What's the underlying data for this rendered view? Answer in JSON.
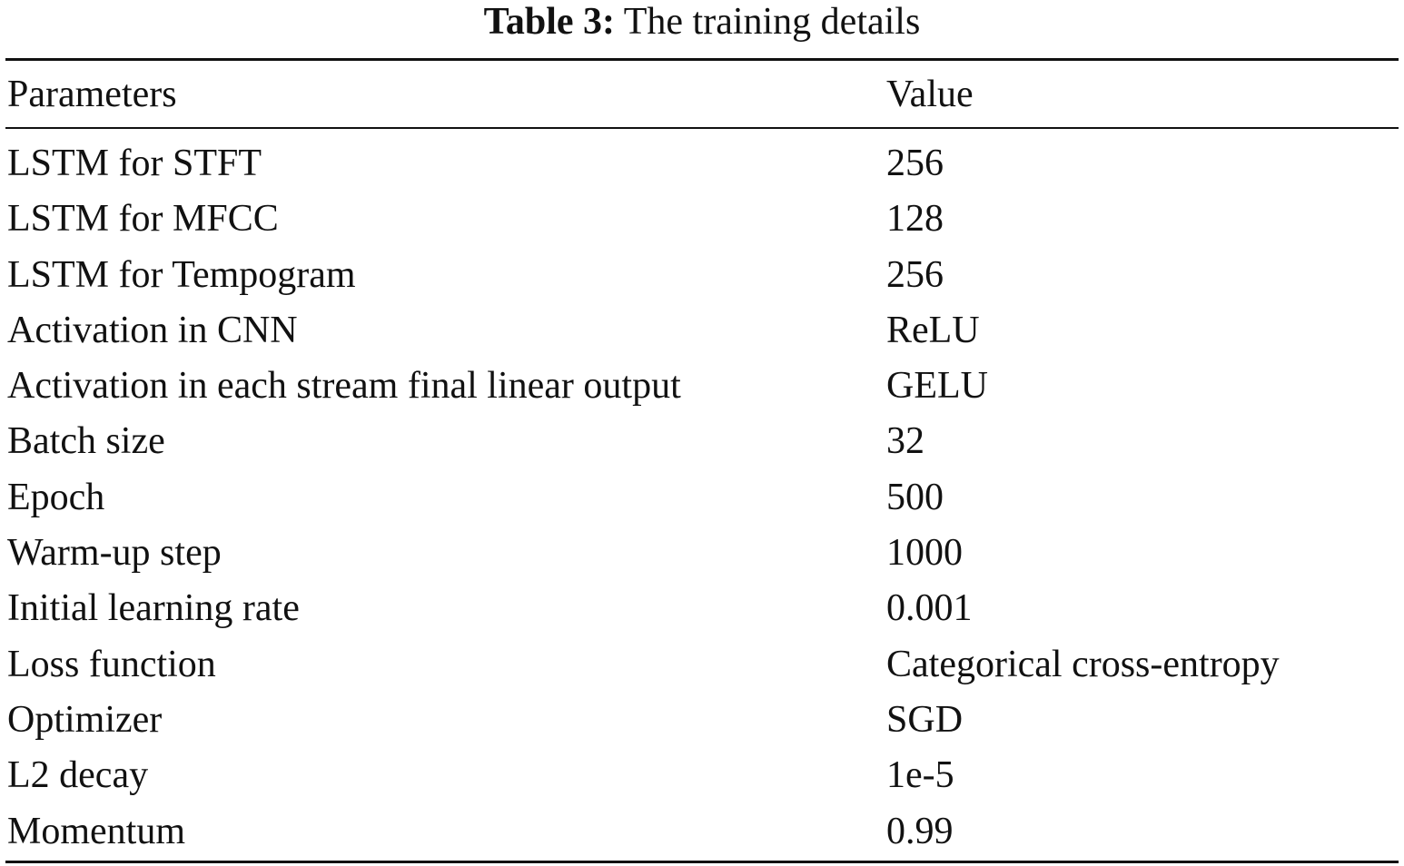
{
  "caption": {
    "label": "Table 3:",
    "title": "The training details"
  },
  "table": {
    "headers": [
      "Parameters",
      "Value"
    ],
    "rows": [
      [
        "LSTM for STFT",
        "256"
      ],
      [
        "LSTM for MFCC",
        "128"
      ],
      [
        "LSTM for Tempogram",
        "256"
      ],
      [
        "Activation in CNN",
        "ReLU"
      ],
      [
        "Activation in each stream final linear output",
        "GELU"
      ],
      [
        "Batch size",
        "32"
      ],
      [
        "Epoch",
        "500"
      ],
      [
        "Warm-up step",
        "1000"
      ],
      [
        "Initial learning rate",
        "0.001"
      ],
      [
        "Loss function",
        "Categorical cross-entropy"
      ],
      [
        "Optimizer",
        "SGD"
      ],
      [
        "L2 decay",
        "1e-5"
      ],
      [
        "Momentum",
        "0.99"
      ]
    ]
  }
}
